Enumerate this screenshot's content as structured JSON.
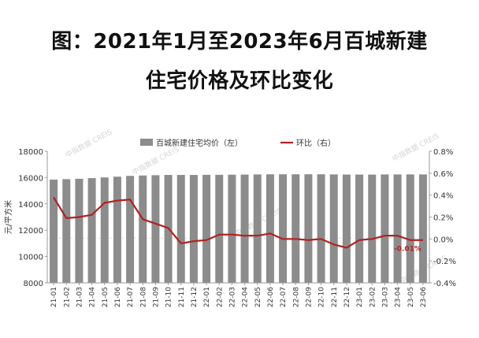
{
  "title": {
    "line1": "图：2021年1月至2023年6月百城新建",
    "line2": "住宅价格及环比变化"
  },
  "watermark": "中指数据 CREIS",
  "chart_data": {
    "type": "bar",
    "x": [
      "21-01",
      "21-02",
      "21-03",
      "21-04",
      "21-05",
      "21-06",
      "21-07",
      "21-08",
      "21-09",
      "21-10",
      "21-11",
      "21-12",
      "22-01",
      "22-02",
      "22-03",
      "22-04",
      "22-05",
      "22-06",
      "22-07",
      "22-08",
      "22-09",
      "22-10",
      "22-11",
      "22-12",
      "23-01",
      "23-02",
      "23-03",
      "23-04",
      "23-05",
      "23-06"
    ],
    "ylabel": "元/平方米",
    "ylim": [
      8000,
      18000
    ],
    "y_ticks": [
      "18000",
      "16000",
      "14000",
      "12000",
      "10000",
      "8000"
    ],
    "y2lim": [
      -0.4,
      0.8
    ],
    "y2_ticks": [
      "0.8%",
      "0.6%",
      "0.4%",
      "0.2%",
      "0.0%",
      "-0.2%",
      "-0.4%"
    ],
    "series": [
      {
        "name": "百城新建住宅均价（左）",
        "type": "bar",
        "color": "#8c8c8c",
        "values": [
          15850,
          15880,
          15910,
          15960,
          16010,
          16070,
          16130,
          16160,
          16180,
          16200,
          16200,
          16200,
          16210,
          16210,
          16220,
          16230,
          16240,
          16250,
          16250,
          16250,
          16250,
          16250,
          16240,
          16230,
          16230,
          16230,
          16240,
          16240,
          16240,
          16240
        ]
      },
      {
        "name": "环比（右）",
        "type": "line",
        "axis": "right",
        "color": "#b22222",
        "values": [
          0.38,
          0.19,
          0.2,
          0.22,
          0.33,
          0.35,
          0.36,
          0.18,
          0.14,
          0.1,
          -0.04,
          -0.02,
          -0.01,
          0.04,
          0.04,
          0.03,
          0.03,
          0.05,
          0.0,
          0.0,
          -0.01,
          0.0,
          -0.05,
          -0.08,
          -0.01,
          0.0,
          0.03,
          0.03,
          -0.01,
          -0.01
        ]
      }
    ],
    "annotation": "-0.01%",
    "reference_line": 11400
  }
}
